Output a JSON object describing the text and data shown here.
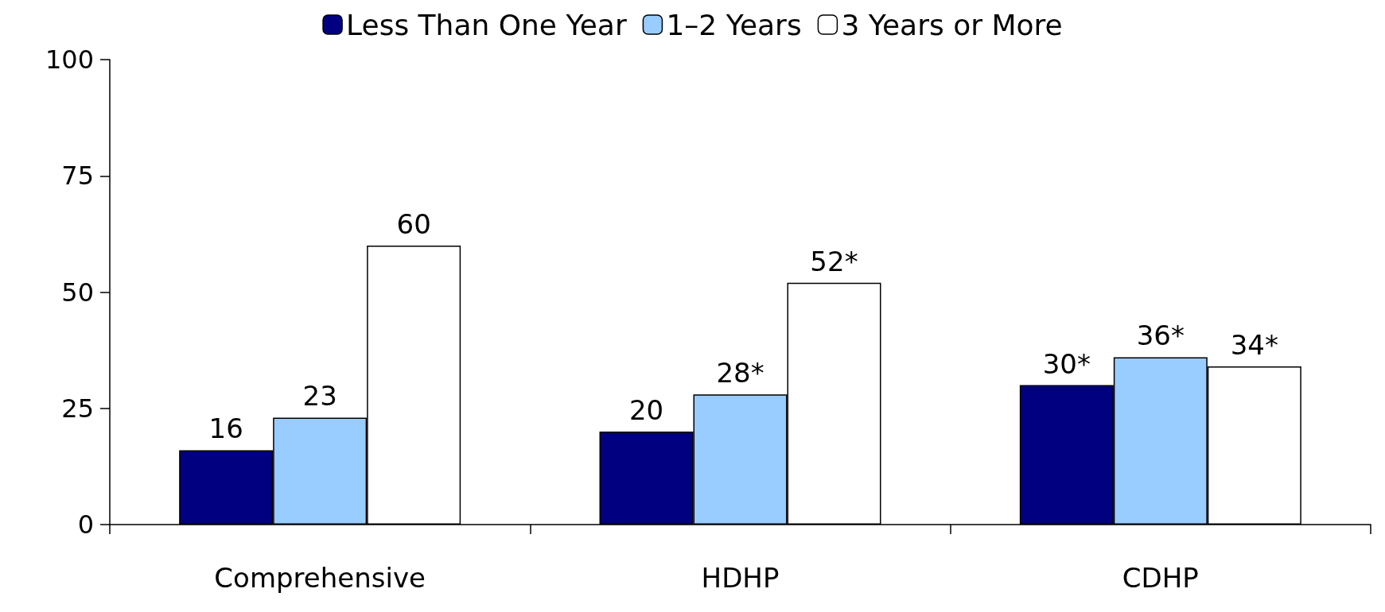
{
  "chart_data": {
    "type": "bar",
    "categories": [
      "Comprehensive",
      "HDHP",
      "CDHP"
    ],
    "series": [
      {
        "name": "Less Than One Year",
        "color": "#000080",
        "values": [
          16,
          20,
          30
        ],
        "value_labels": [
          "16",
          "20",
          "30*"
        ]
      },
      {
        "name": "1–2 Years",
        "color": "#99ccff",
        "values": [
          23,
          28,
          36
        ],
        "value_labels": [
          "23",
          "28*",
          "36*"
        ]
      },
      {
        "name": "3 Years or More",
        "color": "#ffffff",
        "values": [
          60,
          52,
          34
        ],
        "value_labels": [
          "60",
          "52*",
          "34*"
        ]
      }
    ],
    "ylim": [
      0,
      100
    ],
    "yticks": [
      0,
      25,
      50,
      75,
      100
    ],
    "grid": false,
    "legend": "top"
  }
}
